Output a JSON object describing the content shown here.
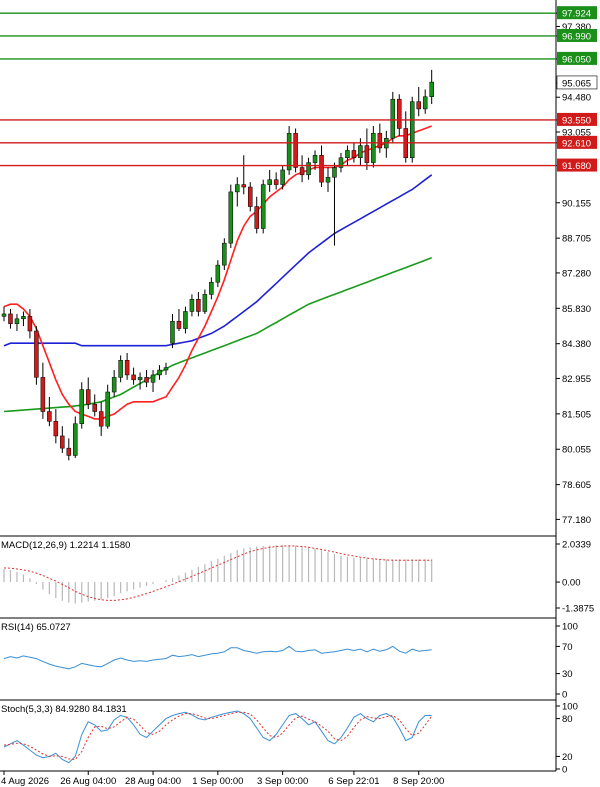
{
  "chart_data": {
    "type": "candlestick",
    "symbol": "",
    "colors": {
      "up": "#1a8f1a",
      "down": "#d11a1a",
      "ma_fast": "#ff2020",
      "ma_mid": "#1e22d6",
      "ma_slow": "#1a9a1a",
      "macd_signal": "#e03030",
      "rsi": "#3a8fd6",
      "stoch_k": "#3a8fd6",
      "stoch_d": "#e03030",
      "price_badge": "#ffffff"
    },
    "price_axis": {
      "min": 76.5,
      "max": 98.3,
      "ticks": [
        "97.924",
        "97.380",
        "96.990",
        "96.050",
        "95.065",
        "94.480",
        "93.550",
        "93.055",
        "92.610",
        "91.680",
        "90.155",
        "88.705",
        "87.280",
        "85.830",
        "84.380",
        "82.955",
        "81.505",
        "80.055",
        "78.605",
        "77.180"
      ],
      "tick_values": [
        97.924,
        97.38,
        96.99,
        96.05,
        95.065,
        94.48,
        93.55,
        93.055,
        92.61,
        91.68,
        90.155,
        88.705,
        87.28,
        85.83,
        84.38,
        82.955,
        81.505,
        80.055,
        78.605,
        77.18
      ]
    },
    "current_price": "95.065",
    "resistance_levels": [
      {
        "label": "97.924",
        "value": 97.924
      },
      {
        "label": "96.990",
        "value": 96.99
      },
      {
        "label": "96.050",
        "value": 96.05
      }
    ],
    "support_levels": [
      {
        "label": "93.550",
        "value": 93.55
      },
      {
        "label": "92.610",
        "value": 92.61
      },
      {
        "label": "91.680",
        "value": 91.68
      }
    ],
    "x_labels": [
      "4 Aug 2026",
      "26 Aug 04:00",
      "28 Aug 04:00",
      "1 Sep 00:00",
      "3 Sep 00:00",
      "6 Sep 22:01",
      "8 Sep 20:00"
    ],
    "x_label_index": [
      0,
      13,
      23,
      33,
      43,
      54,
      64
    ],
    "candles": [
      [
        85.5,
        85.9,
        85.3,
        85.6
      ],
      [
        85.6,
        85.8,
        85.0,
        85.2
      ],
      [
        85.2,
        85.6,
        84.9,
        85.4
      ],
      [
        85.4,
        85.7,
        85.1,
        85.5
      ],
      [
        85.5,
        85.8,
        84.6,
        84.9
      ],
      [
        84.9,
        85.1,
        82.7,
        83.0
      ],
      [
        83.0,
        83.6,
        81.3,
        81.6
      ],
      [
        81.6,
        82.2,
        81.0,
        81.2
      ],
      [
        81.2,
        81.7,
        80.3,
        80.6
      ],
      [
        80.6,
        81.0,
        79.9,
        80.1
      ],
      [
        80.1,
        80.5,
        79.6,
        79.8
      ],
      [
        79.8,
        81.4,
        79.7,
        81.1
      ],
      [
        81.1,
        82.8,
        80.9,
        82.5
      ],
      [
        82.5,
        83.0,
        81.7,
        81.9
      ],
      [
        81.9,
        82.3,
        81.4,
        81.6
      ],
      [
        81.6,
        82.0,
        80.6,
        81.0
      ],
      [
        81.0,
        82.7,
        80.9,
        82.4
      ],
      [
        82.4,
        83.3,
        82.2,
        83.0
      ],
      [
        83.0,
        83.9,
        82.8,
        83.7
      ],
      [
        83.7,
        84.0,
        82.9,
        83.1
      ],
      [
        83.1,
        83.4,
        82.7,
        82.9
      ],
      [
        82.9,
        83.2,
        82.5,
        83.0
      ],
      [
        83.0,
        83.3,
        82.6,
        82.8
      ],
      [
        82.8,
        83.3,
        82.4,
        83.1
      ],
      [
        83.1,
        83.5,
        82.9,
        83.3
      ],
      [
        83.3,
        83.6,
        83.1,
        83.4
      ],
      [
        84.4,
        85.6,
        84.2,
        85.3
      ],
      [
        85.3,
        85.8,
        84.9,
        85.0
      ],
      [
        85.0,
        85.9,
        84.8,
        85.7
      ],
      [
        85.7,
        86.4,
        85.5,
        86.2
      ],
      [
        86.2,
        86.5,
        85.5,
        85.7
      ],
      [
        85.7,
        86.6,
        85.6,
        86.4
      ],
      [
        86.4,
        87.1,
        86.2,
        86.9
      ],
      [
        86.9,
        87.8,
        86.7,
        87.6
      ],
      [
        87.6,
        88.7,
        87.4,
        88.5
      ],
      [
        88.5,
        90.9,
        88.3,
        90.6
      ],
      [
        90.6,
        91.2,
        90.0,
        90.9
      ],
      [
        90.9,
        92.1,
        90.5,
        90.8
      ],
      [
        90.8,
        91.0,
        89.8,
        90.0
      ],
      [
        90.0,
        90.4,
        88.9,
        89.1
      ],
      [
        89.1,
        91.1,
        88.9,
        90.9
      ],
      [
        90.9,
        91.5,
        90.6,
        91.1
      ],
      [
        91.1,
        91.4,
        90.7,
        90.9
      ],
      [
        90.9,
        91.7,
        90.7,
        91.5
      ],
      [
        91.5,
        93.3,
        91.3,
        93.0
      ],
      [
        93.0,
        93.2,
        91.4,
        91.6
      ],
      [
        91.6,
        92.1,
        91.0,
        91.3
      ],
      [
        91.3,
        92.0,
        91.1,
        91.8
      ],
      [
        91.8,
        92.3,
        91.5,
        92.1
      ],
      [
        92.1,
        92.5,
        90.8,
        91.0
      ],
      [
        91.0,
        91.6,
        90.6,
        91.2
      ],
      [
        91.2,
        91.8,
        88.4,
        91.6
      ],
      [
        91.6,
        92.2,
        91.4,
        92.0
      ],
      [
        92.0,
        92.5,
        91.7,
        92.3
      ],
      [
        92.3,
        92.6,
        91.8,
        92.0
      ],
      [
        92.0,
        92.8,
        91.7,
        92.5
      ],
      [
        92.5,
        93.2,
        91.5,
        91.8
      ],
      [
        91.8,
        93.3,
        91.6,
        93.0
      ],
      [
        93.0,
        93.4,
        92.2,
        92.4
      ],
      [
        92.4,
        93.1,
        92.0,
        92.8
      ],
      [
        92.8,
        94.7,
        92.6,
        94.4
      ],
      [
        94.4,
        94.6,
        92.9,
        93.2
      ],
      [
        93.2,
        93.9,
        91.8,
        92.0
      ],
      [
        92.0,
        94.5,
        91.8,
        94.3
      ],
      [
        94.3,
        94.9,
        93.7,
        94.0
      ],
      [
        94.0,
        94.8,
        93.8,
        94.5
      ],
      [
        94.5,
        95.6,
        94.2,
        95.1
      ]
    ],
    "ma_fast": [
      85.9,
      86.0,
      86.0,
      85.8,
      85.5,
      85.0,
      84.3,
      83.6,
      82.9,
      82.3,
      81.9,
      81.6,
      81.5,
      81.4,
      81.3,
      81.3,
      81.4,
      81.5,
      81.7,
      81.9,
      82.0,
      82.0,
      82.0,
      82.0,
      82.1,
      82.2,
      82.6,
      83.0,
      83.5,
      84.1,
      84.6,
      85.1,
      85.7,
      86.3,
      87.0,
      87.8,
      88.6,
      89.2,
      89.6,
      89.8,
      90.1,
      90.4,
      90.6,
      90.8,
      91.1,
      91.3,
      91.4,
      91.5,
      91.6,
      91.6,
      91.6,
      91.6,
      91.7,
      91.9,
      92.0,
      92.2,
      92.3,
      92.4,
      92.5,
      92.6,
      92.8,
      92.9,
      92.9,
      93.0,
      93.1,
      93.2,
      93.3
    ],
    "ma_mid": [
      84.3,
      84.4,
      84.4,
      84.4,
      84.4,
      84.4,
      84.4,
      84.4,
      84.4,
      84.4,
      84.4,
      84.4,
      84.3,
      84.3,
      84.3,
      84.3,
      84.3,
      84.3,
      84.3,
      84.3,
      84.3,
      84.3,
      84.3,
      84.3,
      84.3,
      84.3,
      84.35,
      84.4,
      84.45,
      84.5,
      84.6,
      84.7,
      84.8,
      84.95,
      85.1,
      85.3,
      85.5,
      85.7,
      85.9,
      86.1,
      86.35,
      86.6,
      86.85,
      87.1,
      87.35,
      87.6,
      87.85,
      88.1,
      88.3,
      88.5,
      88.7,
      88.9,
      89.05,
      89.2,
      89.35,
      89.5,
      89.65,
      89.8,
      89.95,
      90.1,
      90.25,
      90.4,
      90.55,
      90.7,
      90.9,
      91.1,
      91.3
    ],
    "ma_slow": [
      81.6,
      81.62,
      81.64,
      81.66,
      81.68,
      81.7,
      81.72,
      81.74,
      81.76,
      81.78,
      81.8,
      81.83,
      81.86,
      81.9,
      81.95,
      82.0,
      82.1,
      82.2,
      82.3,
      82.45,
      82.6,
      82.75,
      82.9,
      83.05,
      83.2,
      83.35,
      83.5,
      83.6,
      83.7,
      83.8,
      83.9,
      84.0,
      84.1,
      84.2,
      84.3,
      84.4,
      84.5,
      84.6,
      84.7,
      84.8,
      84.95,
      85.1,
      85.25,
      85.4,
      85.55,
      85.7,
      85.85,
      86.0,
      86.1,
      86.2,
      86.3,
      86.4,
      86.5,
      86.6,
      86.7,
      86.8,
      86.9,
      87.0,
      87.1,
      87.2,
      87.3,
      87.4,
      87.5,
      87.6,
      87.7,
      87.8,
      87.9
    ],
    "macd": {
      "label": "MACD(12,26,9) 1.2214 1.1580",
      "axis_labels": [
        "2.0339",
        "0.00",
        "-1.3875"
      ],
      "range": [
        -1.3875,
        2.0339
      ],
      "hist": [
        0.7,
        0.65,
        0.55,
        0.4,
        0.2,
        -0.1,
        -0.4,
        -0.65,
        -0.85,
        -1.0,
        -1.1,
        -1.15,
        -1.1,
        -1.05,
        -1.0,
        -0.95,
        -0.85,
        -0.75,
        -0.6,
        -0.5,
        -0.4,
        -0.3,
        -0.2,
        -0.1,
        0.0,
        0.1,
        0.2,
        0.35,
        0.5,
        0.65,
        0.8,
        0.95,
        1.1,
        1.25,
        1.4,
        1.55,
        1.7,
        1.8,
        1.85,
        1.9,
        1.93,
        1.95,
        1.97,
        1.98,
        1.97,
        1.95,
        1.9,
        1.85,
        1.8,
        1.7,
        1.6,
        1.5,
        1.4,
        1.35,
        1.3,
        1.28,
        1.25,
        1.23,
        1.22,
        1.21,
        1.21,
        1.21,
        1.21,
        1.22,
        1.22,
        1.22,
        1.22
      ],
      "signal": [
        0.75,
        0.74,
        0.7,
        0.65,
        0.58,
        0.48,
        0.35,
        0.2,
        0.05,
        -0.12,
        -0.3,
        -0.5,
        -0.65,
        -0.78,
        -0.88,
        -0.95,
        -0.98,
        -0.98,
        -0.95,
        -0.9,
        -0.82,
        -0.72,
        -0.62,
        -0.5,
        -0.38,
        -0.25,
        -0.12,
        0.02,
        0.16,
        0.3,
        0.45,
        0.6,
        0.75,
        0.9,
        1.05,
        1.2,
        1.35,
        1.5,
        1.62,
        1.72,
        1.8,
        1.86,
        1.9,
        1.92,
        1.93,
        1.92,
        1.9,
        1.86,
        1.8,
        1.74,
        1.67,
        1.6,
        1.52,
        1.45,
        1.39,
        1.33,
        1.28,
        1.24,
        1.21,
        1.18,
        1.17,
        1.16,
        1.16,
        1.16,
        1.16,
        1.16,
        1.16
      ]
    },
    "rsi": {
      "label": "RSI(14) 65.0727",
      "axis_labels": [
        "100",
        "70",
        "30",
        "0"
      ],
      "levels": [
        100,
        70,
        30,
        0
      ],
      "values": [
        52,
        55,
        53,
        56,
        54,
        52,
        48,
        44,
        41,
        39,
        37,
        40,
        45,
        43,
        41,
        40,
        45,
        50,
        53,
        50,
        48,
        49,
        48,
        50,
        51,
        52,
        57,
        55,
        56,
        58,
        55,
        57,
        59,
        60,
        62,
        68,
        68,
        64,
        62,
        60,
        62,
        63,
        62,
        64,
        70,
        63,
        62,
        64,
        65,
        60,
        61,
        62,
        64,
        66,
        64,
        66,
        62,
        66,
        63,
        65,
        70,
        63,
        60,
        66,
        63,
        64,
        65
      ]
    },
    "stoch": {
      "label": "Stoch(5,3,3) 84.9280 84.1831",
      "axis_labels": [
        "100",
        "80",
        "20",
        "0"
      ],
      "levels": [
        100,
        80,
        20,
        0
      ],
      "k": [
        35,
        40,
        45,
        38,
        30,
        22,
        18,
        20,
        25,
        15,
        10,
        20,
        55,
        75,
        70,
        60,
        62,
        78,
        85,
        82,
        70,
        55,
        50,
        60,
        70,
        80,
        85,
        88,
        90,
        86,
        80,
        78,
        82,
        85,
        88,
        90,
        92,
        88,
        80,
        65,
        50,
        45,
        55,
        70,
        85,
        88,
        80,
        70,
        75,
        60,
        45,
        40,
        50,
        65,
        82,
        88,
        80,
        75,
        85,
        88,
        82,
        65,
        45,
        50,
        75,
        85,
        85
      ],
      "d": [
        38,
        39,
        41,
        40,
        36,
        30,
        24,
        20,
        21,
        20,
        16,
        15,
        28,
        50,
        67,
        68,
        64,
        67,
        75,
        82,
        79,
        69,
        58,
        55,
        60,
        70,
        78,
        84,
        88,
        88,
        85,
        81,
        80,
        82,
        85,
        88,
        90,
        90,
        87,
        78,
        65,
        53,
        50,
        57,
        70,
        81,
        84,
        79,
        75,
        68,
        60,
        48,
        45,
        52,
        66,
        78,
        83,
        81,
        80,
        83,
        85,
        78,
        64,
        53,
        57,
        70,
        84
      ]
    }
  }
}
